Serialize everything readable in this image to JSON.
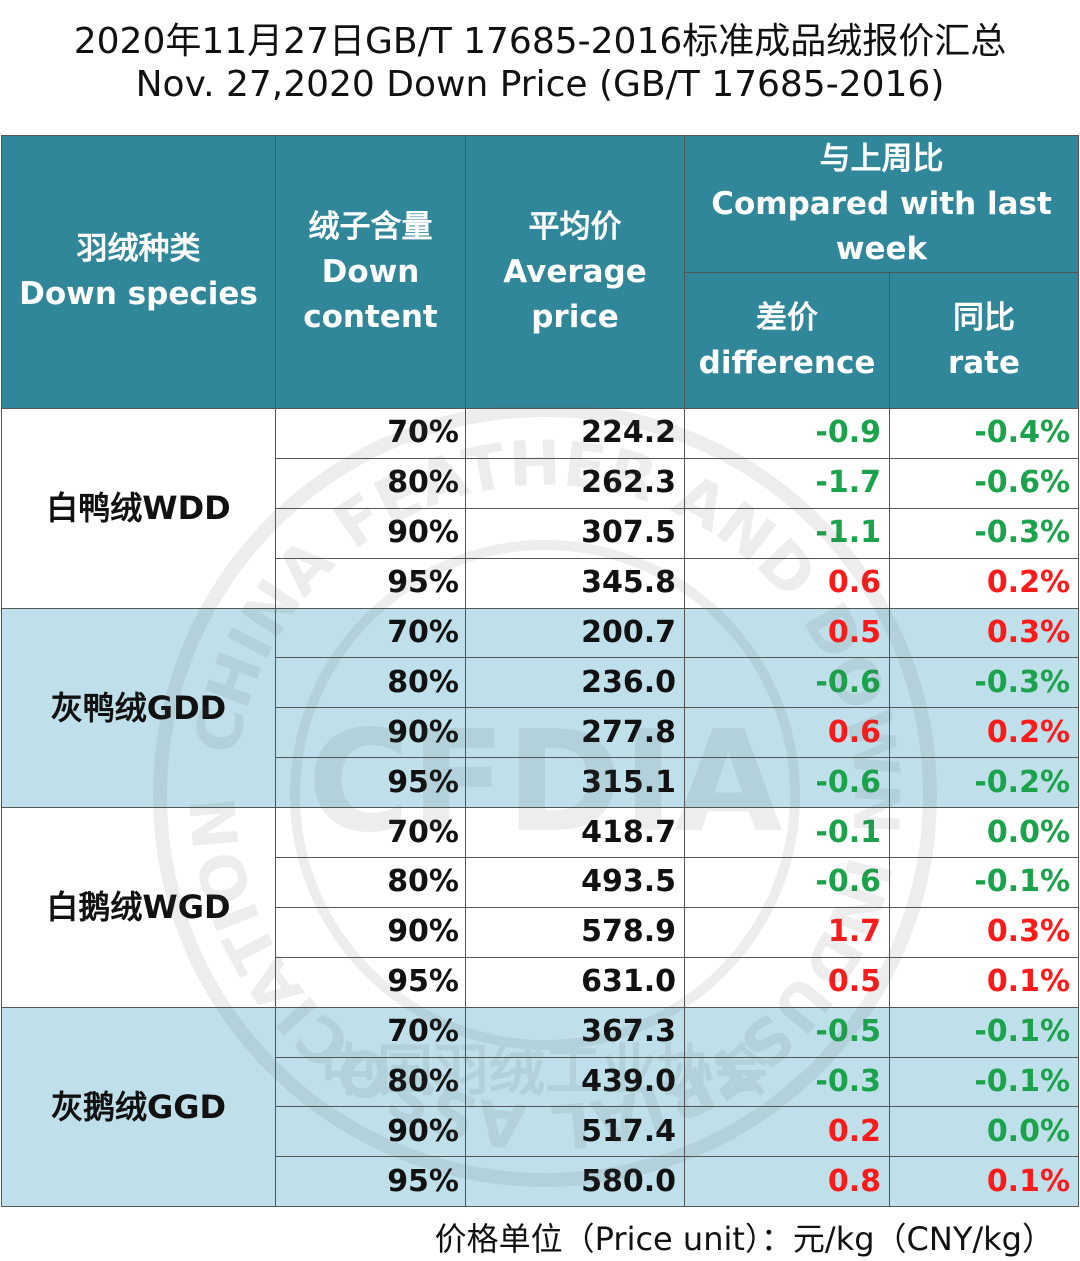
{
  "title_cn": "2020年11月27日GB/T 17685-2016标准成品绒报价汇总",
  "title_en": "Nov. 27,2020 Down Price (GB/T 17685-2016)",
  "headers": {
    "species_cn": "羽绒种类",
    "species_en": "Down species",
    "content_cn": "绒子含量",
    "content_en1": "Down",
    "content_en2": "content",
    "price_cn": "平均价",
    "price_en1": "Average",
    "price_en2": "price",
    "compare_cn": "与上周比",
    "compare_en1": "Compared with last",
    "compare_en2": "week",
    "diff_cn": "差价",
    "diff_en": "difference",
    "rate_cn": "同比",
    "rate_en": "rate"
  },
  "groups": [
    {
      "species": "白鸭绒WDD",
      "rows": [
        {
          "content": "70%",
          "price": "224.2",
          "diff": "-0.9",
          "rate": "-0.4%"
        },
        {
          "content": "80%",
          "price": "262.3",
          "diff": "-1.7",
          "rate": "-0.6%"
        },
        {
          "content": "90%",
          "price": "307.5",
          "diff": "-1.1",
          "rate": "-0.3%"
        },
        {
          "content": "95%",
          "price": "345.8",
          "diff": "0.6",
          "rate": "0.2%"
        }
      ]
    },
    {
      "species": "灰鸭绒GDD",
      "rows": [
        {
          "content": "70%",
          "price": "200.7",
          "diff": "0.5",
          "rate": "0.3%"
        },
        {
          "content": "80%",
          "price": "236.0",
          "diff": "-0.6",
          "rate": "-0.3%"
        },
        {
          "content": "90%",
          "price": "277.8",
          "diff": "0.6",
          "rate": "0.2%"
        },
        {
          "content": "95%",
          "price": "315.1",
          "diff": "-0.6",
          "rate": "-0.2%"
        }
      ]
    },
    {
      "species": "白鹅绒WGD",
      "rows": [
        {
          "content": "70%",
          "price": "418.7",
          "diff": "-0.1",
          "rate": "0.0%"
        },
        {
          "content": "80%",
          "price": "493.5",
          "diff": "-0.6",
          "rate": "-0.1%"
        },
        {
          "content": "90%",
          "price": "578.9",
          "diff": "1.7",
          "rate": "0.3%"
        },
        {
          "content": "95%",
          "price": "631.0",
          "diff": "0.5",
          "rate": "0.1%"
        }
      ]
    },
    {
      "species": "灰鹅绒GGD",
      "rows": [
        {
          "content": "70%",
          "price": "367.3",
          "diff": "-0.5",
          "rate": "-0.1%"
        },
        {
          "content": "80%",
          "price": "439.0",
          "diff": "-0.3",
          "rate": "-0.1%"
        },
        {
          "content": "90%",
          "price": "517.4",
          "diff": "0.2",
          "rate": "0.0%"
        },
        {
          "content": "95%",
          "price": "580.0",
          "diff": "0.8",
          "rate": "0.1%"
        }
      ]
    }
  ],
  "footer": "价格单位（Price unit）：元/kg（CNY/kg）",
  "colors": {
    "header_bg": "#31879a",
    "alt_row_bg": "#bfe0ea",
    "negative": "#1aa34a",
    "positive": "#ff1a1a"
  },
  "watermark": {
    "icon": "association-seal-icon",
    "ring_text": "CHINA FEATHER AND DOWN INDUSTRIAL ASSOCIATION",
    "center_text": "CFDIA",
    "bottom_text": "中国羽绒工业协会"
  }
}
